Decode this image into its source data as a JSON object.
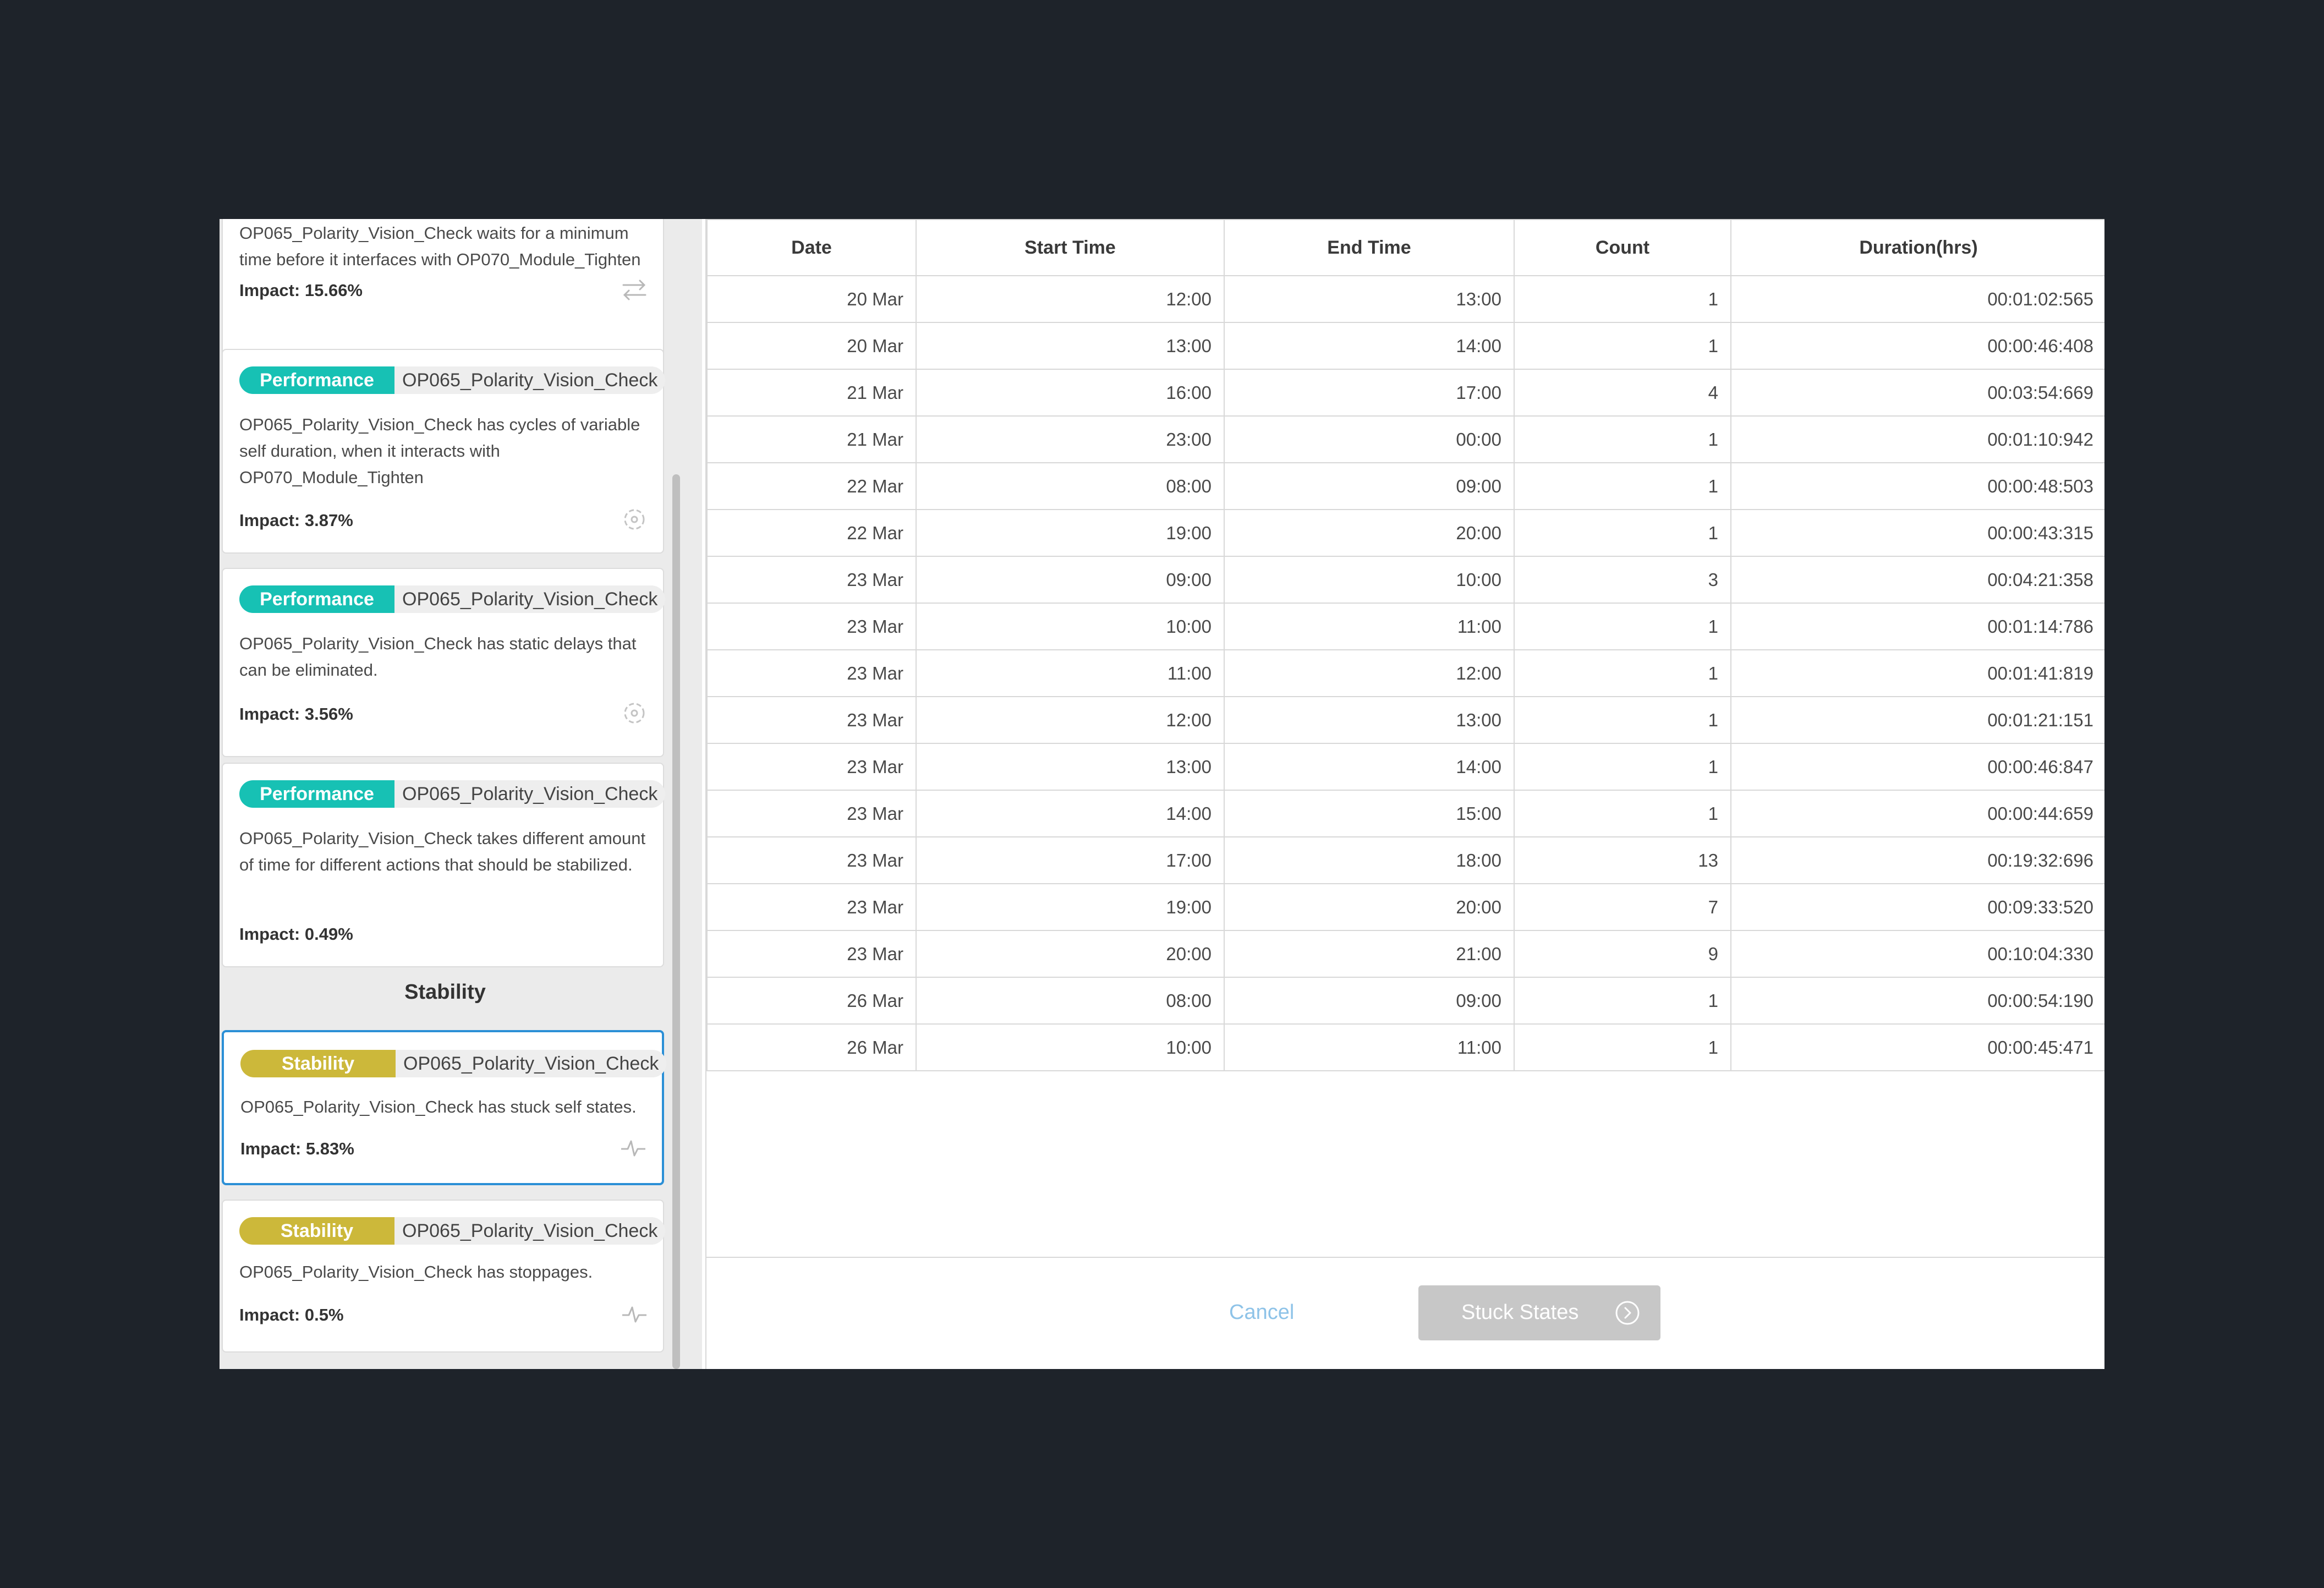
{
  "insights": [
    {
      "tag": "",
      "node": "",
      "description": "OP065_Polarity_Vision_Check waits for a minimum time before it interfaces with OP070_Module_Tighten",
      "impact": "Impact: 15.66%",
      "icon": "swap-arrows-icon"
    },
    {
      "tag": "Performance",
      "node": "OP065_Polarity_Vision_Check",
      "description": "OP065_Polarity_Vision_Check has cycles of variable self duration, when it interacts with OP070_Module_Tighten",
      "impact": "Impact: 3.87%",
      "icon": "cycle-icon"
    },
    {
      "tag": "Performance",
      "node": "OP065_Polarity_Vision_Check",
      "description": "OP065_Polarity_Vision_Check has static delays that can be eliminated.",
      "impact": "Impact: 3.56%",
      "icon": "cycle-icon"
    },
    {
      "tag": "Performance",
      "node": "OP065_Polarity_Vision_Check",
      "description": "OP065_Polarity_Vision_Check takes different amount of time for different actions that should be stabilized.",
      "impact": "Impact: 0.49%",
      "icon": "cycle-icon"
    },
    {
      "tag": "Stability",
      "node": "OP065_Polarity_Vision_Check",
      "description": "OP065_Polarity_Vision_Check has stuck self states.",
      "impact": "Impact: 5.83%",
      "icon": "pulse-icon"
    },
    {
      "tag": "Stability",
      "node": "OP065_Polarity_Vision_Check",
      "description": "OP065_Polarity_Vision_Check has stoppages.",
      "impact": "Impact: 0.5%",
      "icon": "pulse-icon"
    }
  ],
  "section_stability": "Stability",
  "table": {
    "columns": [
      "Date",
      "Start Time",
      "End Time",
      "Count",
      "Duration(hrs)"
    ],
    "rows": [
      [
        "20 Mar",
        "12:00",
        "13:00",
        "1",
        "00:01:02:565"
      ],
      [
        "20 Mar",
        "13:00",
        "14:00",
        "1",
        "00:00:46:408"
      ],
      [
        "21 Mar",
        "16:00",
        "17:00",
        "4",
        "00:03:54:669"
      ],
      [
        "21 Mar",
        "23:00",
        "00:00",
        "1",
        "00:01:10:942"
      ],
      [
        "22 Mar",
        "08:00",
        "09:00",
        "1",
        "00:00:48:503"
      ],
      [
        "22 Mar",
        "19:00",
        "20:00",
        "1",
        "00:00:43:315"
      ],
      [
        "23 Mar",
        "09:00",
        "10:00",
        "3",
        "00:04:21:358"
      ],
      [
        "23 Mar",
        "10:00",
        "11:00",
        "1",
        "00:01:14:786"
      ],
      [
        "23 Mar",
        "11:00",
        "12:00",
        "1",
        "00:01:41:819"
      ],
      [
        "23 Mar",
        "12:00",
        "13:00",
        "1",
        "00:01:21:151"
      ],
      [
        "23 Mar",
        "13:00",
        "14:00",
        "1",
        "00:00:46:847"
      ],
      [
        "23 Mar",
        "14:00",
        "15:00",
        "1",
        "00:00:44:659"
      ],
      [
        "23 Mar",
        "17:00",
        "18:00",
        "13",
        "00:19:32:696"
      ],
      [
        "23 Mar",
        "19:00",
        "20:00",
        "7",
        "00:09:33:520"
      ],
      [
        "23 Mar",
        "20:00",
        "21:00",
        "9",
        "00:10:04:330"
      ],
      [
        "26 Mar",
        "08:00",
        "09:00",
        "1",
        "00:00:54:190"
      ],
      [
        "26 Mar",
        "10:00",
        "11:00",
        "1",
        "00:00:45:471"
      ]
    ]
  },
  "footer": {
    "cancel_label": "Cancel",
    "primary_label": "Stuck States"
  }
}
